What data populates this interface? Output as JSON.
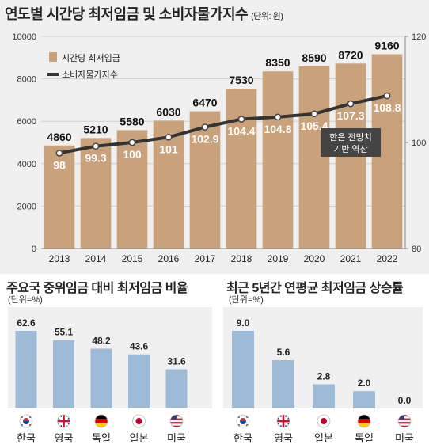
{
  "top": {
    "title": "연도별 시간당 최저임금 및 소비자물가지수",
    "unit": "(단위: 원)",
    "annotation": [
      "한은 전망치",
      "기반 역산"
    ]
  },
  "bottom_left": {
    "title": "주요국 중위임금 대비 최저임금 비율",
    "unit": "(단위=%)"
  },
  "bottom_right": {
    "title": "최근 5년간 연평균 최저임금 상승률",
    "unit": "(단위=%)"
  },
  "colors": {
    "wage_bar": "#c9a27c",
    "cpi_line": "#333333",
    "blue_bar": "#9dbbd6",
    "top_bg": "#f0f0f0"
  },
  "chart_data": [
    {
      "type": "bar",
      "categories": [
        "2013",
        "2014",
        "2015",
        "2016",
        "2017",
        "2018",
        "2019",
        "2020",
        "2021",
        "2022"
      ],
      "series": [
        {
          "name": "시간당 최저임금",
          "type": "bar",
          "axis": "left",
          "values": [
            4860,
            5210,
            5580,
            6030,
            6470,
            7530,
            8350,
            8590,
            8720,
            9160
          ]
        },
        {
          "name": "소비자물가지수",
          "type": "line",
          "axis": "right",
          "values": [
            98,
            99.3,
            100,
            101,
            102.9,
            104.4,
            104.8,
            105.4,
            107.3,
            108.8
          ]
        }
      ],
      "data_labels_left": [
        "4860",
        "5210",
        "5580",
        "6030",
        "6470",
        "7530",
        "8350",
        "8590",
        "8720",
        "9160"
      ],
      "data_labels_right": [
        "98",
        "99.3",
        "100",
        "101",
        "102.9",
        "104.4",
        "104.8",
        "105.4",
        "107.3",
        "108.8"
      ],
      "y_left_ticks": [
        "0",
        "2000",
        "4000",
        "6000",
        "8000",
        "10000"
      ],
      "y_right_ticks": [
        "80",
        "100",
        "120"
      ],
      "ylim_left": [
        0,
        10000
      ],
      "ylim_right": [
        80,
        120
      ],
      "grid": true,
      "legend": "top-left"
    },
    {
      "type": "bar",
      "categories": [
        "한국",
        "영국",
        "독일",
        "일본",
        "미국"
      ],
      "values": [
        62.6,
        55.1,
        48.2,
        43.6,
        31.6
      ],
      "value_labels": [
        "62.6",
        "55.1",
        "48.2",
        "43.6",
        "31.6"
      ],
      "flags": [
        "kr",
        "uk",
        "de",
        "jp",
        "us"
      ]
    },
    {
      "type": "bar",
      "categories": [
        "한국",
        "영국",
        "일본",
        "독일",
        "미국"
      ],
      "values": [
        9.0,
        5.6,
        2.8,
        2.0,
        0.0
      ],
      "value_labels": [
        "9.0",
        "5.6",
        "2.8",
        "2.0",
        "0.0"
      ],
      "flags": [
        "kr",
        "uk",
        "jp",
        "de",
        "us"
      ]
    }
  ]
}
